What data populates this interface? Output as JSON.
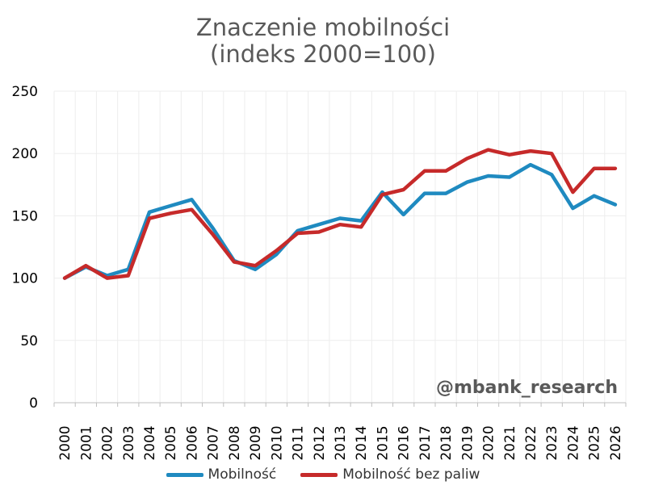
{
  "chart_data": {
    "type": "line",
    "title_line1": "Znaczenie mobilności",
    "title_line2": "(indeks 2000=100)",
    "watermark": "@mbank_research",
    "categories": [
      "2000",
      "2001",
      "2002",
      "2003",
      "2004",
      "2005",
      "2006",
      "2007",
      "2008",
      "2009",
      "2010",
      "2011",
      "2012",
      "2013",
      "2014",
      "2015",
      "2016",
      "2017",
      "2018",
      "2019",
      "2020",
      "2021",
      "2022",
      "2023",
      "2024",
      "2025",
      "2026"
    ],
    "ylim": [
      0,
      250
    ],
    "yticks": [
      0,
      50,
      100,
      150,
      200,
      250
    ],
    "grid": true,
    "legend_position": "bottom",
    "series": [
      {
        "name": "Mobilność",
        "color": "#1f8ac0",
        "values": [
          100,
          109,
          102,
          107,
          153,
          158,
          163,
          140,
          114,
          107,
          119,
          138,
          143,
          148,
          146,
          169,
          151,
          168,
          168,
          177,
          182,
          181,
          191,
          183,
          156,
          166,
          159
        ]
      },
      {
        "name": "Mobilność bez paliw",
        "color": "#c62a2a",
        "values": [
          100,
          110,
          100,
          102,
          148,
          152,
          155,
          135,
          113,
          110,
          122,
          136,
          137,
          143,
          141,
          167,
          171,
          186,
          186,
          196,
          203,
          199,
          202,
          200,
          169,
          188,
          188
        ]
      }
    ]
  }
}
